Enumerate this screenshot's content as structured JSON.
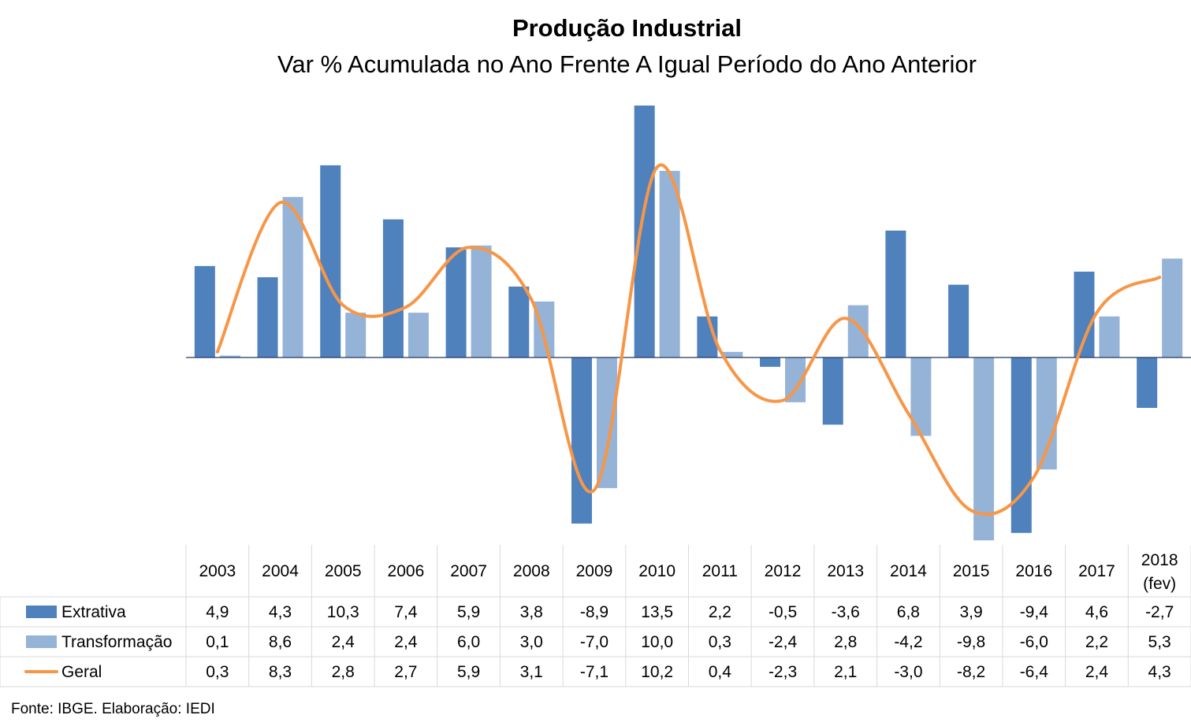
{
  "title": "Produção Industrial",
  "subtitle": "Var % Acumulada no Ano Frente A Igual Período do Ano Anterior",
  "source": "Fonte: IBGE. Elaboração: IEDI",
  "colors": {
    "extrativa": "#4f81bd",
    "transformacao": "#95b3d7",
    "geral": "#f79646",
    "axis": "#1f3864",
    "grid": "#d9d9d9"
  },
  "chart_data": {
    "type": "bar",
    "categories": [
      "2003",
      "2004",
      "2005",
      "2006",
      "2007",
      "2008",
      "2009",
      "2010",
      "2011",
      "2012",
      "2013",
      "2014",
      "2015",
      "2016",
      "2017",
      "2018 (fev)"
    ],
    "category_lines": [
      [
        "2003"
      ],
      [
        "2004"
      ],
      [
        "2005"
      ],
      [
        "2006"
      ],
      [
        "2007"
      ],
      [
        "2008"
      ],
      [
        "2009"
      ],
      [
        "2010"
      ],
      [
        "2011"
      ],
      [
        "2012"
      ],
      [
        "2013"
      ],
      [
        "2014"
      ],
      [
        "2015"
      ],
      [
        "2016"
      ],
      [
        "2017"
      ],
      [
        "2018",
        "(fev)"
      ]
    ],
    "series": [
      {
        "name": "Extrativa",
        "type": "bar",
        "values": [
          4.9,
          4.3,
          10.3,
          7.4,
          5.9,
          3.8,
          -8.9,
          13.5,
          2.2,
          -0.5,
          -3.6,
          6.8,
          3.9,
          -9.4,
          4.6,
          -2.7
        ],
        "labels": [
          "4,9",
          "4,3",
          "10,3",
          "7,4",
          "5,9",
          "3,8",
          "-8,9",
          "13,5",
          "2,2",
          "-0,5",
          "-3,6",
          "6,8",
          "3,9",
          "-9,4",
          "4,6",
          "-2,7"
        ]
      },
      {
        "name": "Transformação",
        "type": "bar",
        "values": [
          0.1,
          8.6,
          2.4,
          2.4,
          6.0,
          3.0,
          -7.0,
          10.0,
          0.3,
          -2.4,
          2.8,
          -4.2,
          -9.8,
          -6.0,
          2.2,
          5.3
        ],
        "labels": [
          "0,1",
          "8,6",
          "2,4",
          "2,4",
          "6,0",
          "3,0",
          "-7,0",
          "10,0",
          "0,3",
          "-2,4",
          "2,8",
          "-4,2",
          "-9,8",
          "-6,0",
          "2,2",
          "5,3"
        ]
      },
      {
        "name": "Geral",
        "type": "line",
        "smooth": true,
        "values": [
          0.3,
          8.3,
          2.8,
          2.7,
          5.9,
          3.1,
          -7.1,
          10.2,
          0.4,
          -2.3,
          2.1,
          -3.0,
          -8.2,
          -6.4,
          2.4,
          4.3
        ],
        "labels": [
          "0,3",
          "8,3",
          "2,8",
          "2,7",
          "5,9",
          "3,1",
          "-7,1",
          "10,2",
          "0,4",
          "-2,3",
          "2,1",
          "-3,0",
          "-8,2",
          "-6,4",
          "2,4",
          "4,3"
        ]
      }
    ],
    "ylim": [
      -10,
      14
    ],
    "data_table": true,
    "grid": false
  }
}
